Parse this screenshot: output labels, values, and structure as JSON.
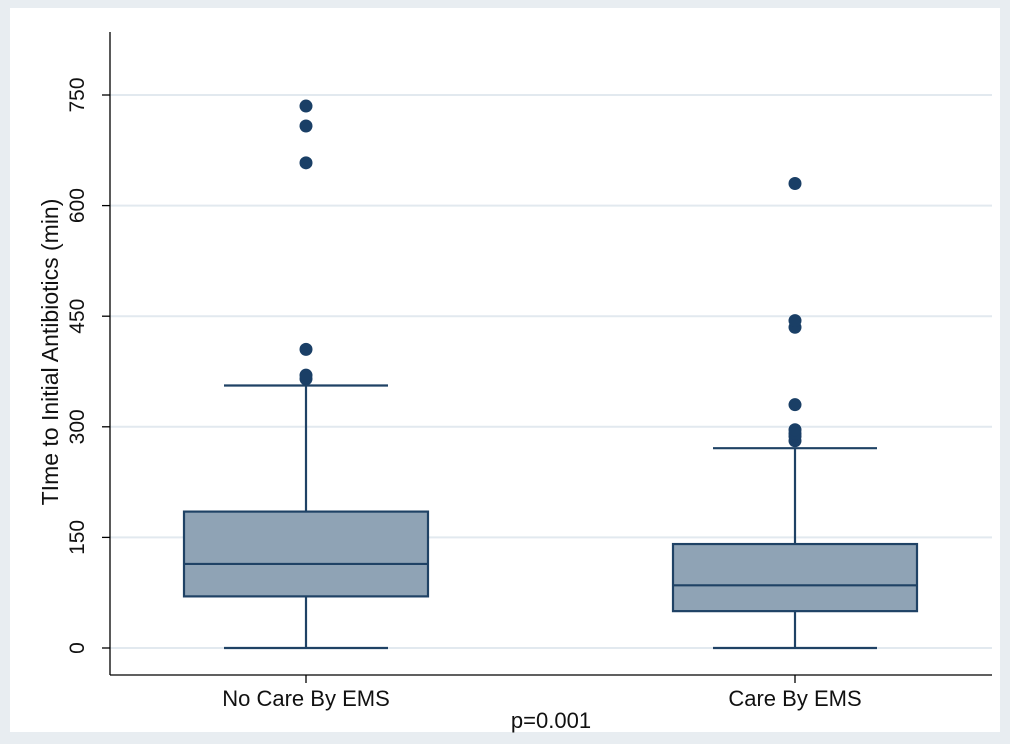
{
  "chart_data": {
    "type": "box",
    "ylabel": "TIme to Initial Antibiotics (min)",
    "xlabel": "",
    "annotation": "p=0.001",
    "ylim": [
      0,
      850
    ],
    "yticks": [
      0,
      150,
      300,
      450,
      600,
      750
    ],
    "grid": true,
    "colors": {
      "box_fill": "#8fa3b5",
      "box_stroke": "#1f4265",
      "outlier": "#1a3f66",
      "grid": "#e2e9ef",
      "plot_bg": "#ffffff",
      "outer_bg": "#e8edf1"
    },
    "categories": [
      "No Care By EMS",
      "Care By EMS"
    ],
    "boxes": [
      {
        "category": "No Care By EMS",
        "min": 0,
        "q1": 70,
        "median": 114,
        "q3": 185,
        "max": 356,
        "outliers": [
          365,
          370,
          405,
          658,
          708,
          735
        ]
      },
      {
        "category": "Care By EMS",
        "min": 0,
        "q1": 50,
        "median": 85,
        "q3": 141,
        "max": 271,
        "outliers": [
          281,
          287,
          291,
          296,
          330,
          435,
          444,
          630
        ]
      }
    ]
  }
}
